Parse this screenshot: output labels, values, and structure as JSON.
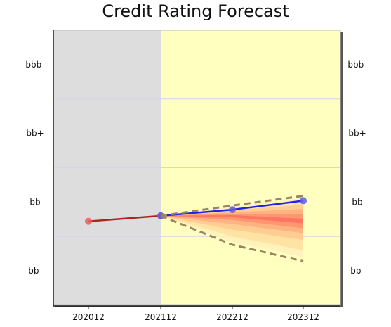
{
  "chart_data": {
    "type": "line",
    "title": "Credit Rating Forecast",
    "xlabel": "",
    "ylabel": "",
    "grid": true,
    "legend": "none",
    "x": [
      "202012",
      "202112",
      "202212",
      "202312"
    ],
    "y_ticks_left": [
      "bbb-",
      "bb+",
      "bb",
      "bb-"
    ],
    "y_ticks_right": [
      "bbb-",
      "bb+",
      "bb",
      "bb-"
    ],
    "y_tick_values": [
      3,
      2,
      1,
      0
    ],
    "ylim": [
      -0.5,
      3.5
    ],
    "historical_region": {
      "from": "202012",
      "to": "202112",
      "color": "#dddddd"
    },
    "forecast_region": {
      "from": "202112",
      "to": "202312",
      "color": "#ffffc0"
    },
    "series": [
      {
        "role": "historical",
        "color": "#b22222",
        "marker_color": "#f05a5a",
        "points": [
          {
            "x": "202012",
            "y": 0.72
          },
          {
            "x": "202112",
            "y": 0.8
          }
        ]
      },
      {
        "role": "forecast",
        "color": "#2222ee",
        "marker_color": "#5a5aee",
        "points": [
          {
            "x": "202112",
            "y": 0.8
          },
          {
            "x": "202212",
            "y": 0.89
          },
          {
            "x": "202312",
            "y": 1.02
          }
        ]
      },
      {
        "role": "upper-bound",
        "color": "#9a8462",
        "dashed": true,
        "points": [
          {
            "x": "202112",
            "y": 0.8
          },
          {
            "x": "202212",
            "y": 0.95
          },
          {
            "x": "202312",
            "y": 1.09
          }
        ]
      },
      {
        "role": "lower-bound",
        "color": "#9a8462",
        "dashed": true,
        "points": [
          {
            "x": "202112",
            "y": 0.8
          },
          {
            "x": "202212",
            "y": 0.38
          },
          {
            "x": "202312",
            "y": 0.14
          }
        ]
      }
    ],
    "fan_bands": [
      {
        "upper": [
          0.8,
          0.93,
          1.06
        ],
        "lower": [
          0.8,
          0.42,
          0.2
        ],
        "color": "#fff0b8"
      },
      {
        "upper": [
          0.8,
          0.91,
          1.02
        ],
        "lower": [
          0.8,
          0.5,
          0.3
        ],
        "color": "#ffe0a0"
      },
      {
        "upper": [
          0.8,
          0.88,
          0.96
        ],
        "lower": [
          0.8,
          0.6,
          0.45
        ],
        "color": "#ffc890"
      },
      {
        "upper": [
          0.8,
          0.85,
          0.9
        ],
        "lower": [
          0.8,
          0.68,
          0.55
        ],
        "color": "#ffae80"
      },
      {
        "upper": [
          0.8,
          0.83,
          0.82
        ],
        "lower": [
          0.8,
          0.74,
          0.62
        ],
        "color": "#ff9070"
      },
      {
        "upper": [
          0.8,
          0.81,
          0.76
        ],
        "lower": [
          0.8,
          0.78,
          0.69
        ],
        "color": "#ff7060"
      }
    ],
    "colors": {
      "grid": "#d4d4ee",
      "axis": "#222222"
    }
  }
}
